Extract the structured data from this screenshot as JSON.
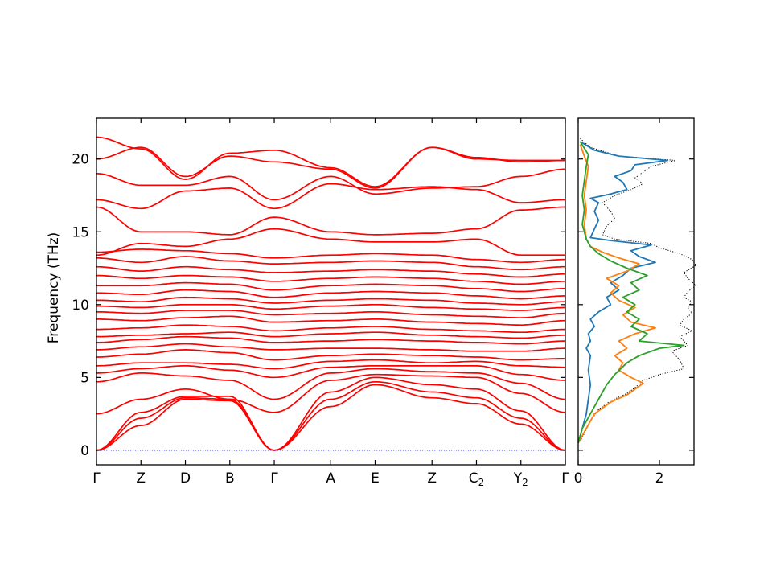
{
  "chart_data": [
    {
      "type": "line",
      "title": "",
      "xlabel": "",
      "ylabel": "Frequency (THz)",
      "ylim": [
        -1.0,
        22.8
      ],
      "yticks": [
        0,
        5,
        10,
        15,
        20
      ],
      "grid": false,
      "xticks": [
        {
          "label": "Γ",
          "sub": "",
          "x": 0.0
        },
        {
          "label": "Z",
          "sub": "",
          "x": 0.1
        },
        {
          "label": "D",
          "sub": "",
          "x": 0.2
        },
        {
          "label": "B",
          "sub": "",
          "x": 0.3
        },
        {
          "label": "Γ",
          "sub": "",
          "x": 0.4
        },
        {
          "label": "A",
          "sub": "",
          "x": 0.527
        },
        {
          "label": "E",
          "sub": "",
          "x": 0.627
        },
        {
          "label": "Z",
          "sub": "",
          "x": 0.755
        },
        {
          "label": "C",
          "sub": "2",
          "x": 0.855
        },
        {
          "label": "Y",
          "sub": "2",
          "x": 0.955
        },
        {
          "label": "Γ",
          "sub": "",
          "x": 1.055
        }
      ],
      "zero_line": {
        "y": 0,
        "color": "#0000ff",
        "style": "dotted"
      },
      "band_color": "#ff0000",
      "bands": [
        [
          0.0,
          1.7,
          3.5,
          3.4,
          0.0,
          3.0,
          4.5,
          3.6,
          3.2,
          1.8,
          0.0
        ],
        [
          0.0,
          2.2,
          3.6,
          3.5,
          0.0,
          3.5,
          4.7,
          4.0,
          3.6,
          2.2,
          0.0
        ],
        [
          0.0,
          2.6,
          3.7,
          3.7,
          0.0,
          4.0,
          5.0,
          4.5,
          4.2,
          2.7,
          0.0
        ],
        [
          2.5,
          3.5,
          4.2,
          3.5,
          2.6,
          4.8,
          5.2,
          5.1,
          5.0,
          3.9,
          2.6
        ],
        [
          4.7,
          5.3,
          5.1,
          4.8,
          3.5,
          5.3,
          5.6,
          5.4,
          5.3,
          4.6,
          3.5
        ],
        [
          5.3,
          5.6,
          5.8,
          5.5,
          5.0,
          5.7,
          5.8,
          5.8,
          5.8,
          5.2,
          4.8
        ],
        [
          5.8,
          6.0,
          6.0,
          5.9,
          5.6,
          6.1,
          6.2,
          6.0,
          6.1,
          5.8,
          5.7
        ],
        [
          6.4,
          6.6,
          6.9,
          6.7,
          6.2,
          6.5,
          6.6,
          6.5,
          6.4,
          6.2,
          6.3
        ],
        [
          6.9,
          7.1,
          7.3,
          7.1,
          6.9,
          7.0,
          7.0,
          6.9,
          6.8,
          6.8,
          7.0
        ],
        [
          7.4,
          7.6,
          7.8,
          7.7,
          7.4,
          7.5,
          7.6,
          7.5,
          7.4,
          7.3,
          7.5
        ],
        [
          7.8,
          7.9,
          8.0,
          8.1,
          7.8,
          8.0,
          8.1,
          7.9,
          7.8,
          7.7,
          7.9
        ],
        [
          8.3,
          8.4,
          8.6,
          8.5,
          8.2,
          8.4,
          8.5,
          8.3,
          8.2,
          8.1,
          8.3
        ],
        [
          9.0,
          8.9,
          9.1,
          9.2,
          8.8,
          8.9,
          9.0,
          8.8,
          8.7,
          8.6,
          8.9
        ],
        [
          9.5,
          9.4,
          9.6,
          9.6,
          9.3,
          9.4,
          9.5,
          9.3,
          9.2,
          9.1,
          9.4
        ],
        [
          9.9,
          9.8,
          10.0,
          10.0,
          9.7,
          9.9,
          10.0,
          9.8,
          9.7,
          9.6,
          9.8
        ],
        [
          10.3,
          10.2,
          10.5,
          10.4,
          10.1,
          10.3,
          10.4,
          10.3,
          10.1,
          10.0,
          10.2
        ],
        [
          10.8,
          10.7,
          11.0,
          10.9,
          10.5,
          10.8,
          10.9,
          10.8,
          10.6,
          10.4,
          10.6
        ],
        [
          11.3,
          11.3,
          11.5,
          11.4,
          11.0,
          11.3,
          11.4,
          11.3,
          11.1,
          10.9,
          11.1
        ],
        [
          12.0,
          11.8,
          12.0,
          11.9,
          11.6,
          11.8,
          11.9,
          11.8,
          11.6,
          11.4,
          11.6
        ],
        [
          12.6,
          12.3,
          12.6,
          12.4,
          12.2,
          12.3,
          12.4,
          12.3,
          12.1,
          11.9,
          12.1
        ],
        [
          13.2,
          12.9,
          13.3,
          13.0,
          12.8,
          12.9,
          13.0,
          12.9,
          12.6,
          12.4,
          12.6
        ],
        [
          13.6,
          13.8,
          13.7,
          13.5,
          13.2,
          13.4,
          13.5,
          13.4,
          13.1,
          12.9,
          13.1
        ],
        [
          13.4,
          14.2,
          14.0,
          14.5,
          15.2,
          14.5,
          14.3,
          14.3,
          14.5,
          13.4,
          13.4
        ],
        [
          16.7,
          15.0,
          15.0,
          14.8,
          16.0,
          15.0,
          14.8,
          14.9,
          15.2,
          16.5,
          16.7
        ],
        [
          17.2,
          16.6,
          17.8,
          18.0,
          16.6,
          18.3,
          17.9,
          18.1,
          17.9,
          17.0,
          17.2
        ],
        [
          19.0,
          18.2,
          18.2,
          18.8,
          17.2,
          18.8,
          17.6,
          18.0,
          18.1,
          18.8,
          19.3
        ],
        [
          20.0,
          20.8,
          18.8,
          20.2,
          19.8,
          19.3,
          18.0,
          20.8,
          20.1,
          19.8,
          19.9
        ],
        [
          21.5,
          20.7,
          18.6,
          20.4,
          20.6,
          19.4,
          18.1,
          20.8,
          20.0,
          19.9,
          19.9
        ]
      ]
    },
    {
      "type": "line",
      "title": "",
      "xlabel": "",
      "ylabel": "",
      "xlim": [
        0,
        2.85
      ],
      "xticks": [
        0,
        2
      ],
      "ylim": [
        -1.0,
        22.8
      ],
      "orientation": "horizontal-dos",
      "series": [
        {
          "color": "#000000",
          "style": "dotted",
          "points": [
            [
              0.05,
              0.6
            ],
            [
              0.3,
              2.0
            ],
            [
              0.5,
              2.8
            ],
            [
              0.8,
              3.4
            ],
            [
              1.2,
              3.9
            ],
            [
              1.4,
              4.3
            ],
            [
              1.6,
              4.8
            ],
            [
              2.0,
              5.2
            ],
            [
              2.6,
              5.6
            ],
            [
              2.5,
              6.2
            ],
            [
              2.3,
              6.8
            ],
            [
              2.7,
              7.2
            ],
            [
              2.5,
              7.8
            ],
            [
              2.8,
              8.2
            ],
            [
              2.5,
              8.6
            ],
            [
              2.6,
              9.0
            ],
            [
              2.8,
              9.4
            ],
            [
              2.7,
              9.8
            ],
            [
              2.8,
              10.2
            ],
            [
              2.6,
              10.5
            ],
            [
              2.7,
              10.9
            ],
            [
              2.9,
              11.3
            ],
            [
              2.7,
              11.8
            ],
            [
              2.6,
              12.2
            ],
            [
              2.9,
              12.7
            ],
            [
              2.8,
              13.1
            ],
            [
              2.5,
              13.5
            ],
            [
              2.0,
              13.9
            ],
            [
              1.8,
              14.2
            ],
            [
              0.9,
              14.5
            ],
            [
              0.6,
              14.8
            ],
            [
              0.7,
              15.4
            ],
            [
              0.9,
              15.9
            ],
            [
              0.8,
              16.4
            ],
            [
              0.6,
              17.0
            ],
            [
              0.9,
              17.5
            ],
            [
              1.3,
              17.9
            ],
            [
              1.6,
              18.3
            ],
            [
              1.4,
              18.7
            ],
            [
              1.6,
              19.1
            ],
            [
              1.8,
              19.5
            ],
            [
              2.4,
              19.9
            ],
            [
              1.0,
              20.2
            ],
            [
              0.3,
              20.8
            ],
            [
              0.05,
              21.4
            ]
          ]
        },
        {
          "color": "#1f77b4",
          "style": "solid",
          "points": [
            [
              0.0,
              0.5
            ],
            [
              0.1,
              1.5
            ],
            [
              0.2,
              2.5
            ],
            [
              0.25,
              3.5
            ],
            [
              0.3,
              4.5
            ],
            [
              0.25,
              5.5
            ],
            [
              0.3,
              6.5
            ],
            [
              0.2,
              7.0
            ],
            [
              0.3,
              7.5
            ],
            [
              0.25,
              8.0
            ],
            [
              0.4,
              8.5
            ],
            [
              0.3,
              9.0
            ],
            [
              0.5,
              9.5
            ],
            [
              0.8,
              10.0
            ],
            [
              0.7,
              10.5
            ],
            [
              1.0,
              11.0
            ],
            [
              0.8,
              11.5
            ],
            [
              1.1,
              12.0
            ],
            [
              1.3,
              12.5
            ],
            [
              1.9,
              12.9
            ],
            [
              1.5,
              13.3
            ],
            [
              1.3,
              13.7
            ],
            [
              1.8,
              14.1
            ],
            [
              0.8,
              14.4
            ],
            [
              0.3,
              14.6
            ],
            [
              0.4,
              15.2
            ],
            [
              0.5,
              15.8
            ],
            [
              0.4,
              16.4
            ],
            [
              0.5,
              17.0
            ],
            [
              0.3,
              17.3
            ],
            [
              0.8,
              17.6
            ],
            [
              1.2,
              17.9
            ],
            [
              1.1,
              18.4
            ],
            [
              0.9,
              18.8
            ],
            [
              1.3,
              19.2
            ],
            [
              1.4,
              19.6
            ],
            [
              2.2,
              19.9
            ],
            [
              1.0,
              20.2
            ],
            [
              0.4,
              20.6
            ],
            [
              0.05,
              21.2
            ]
          ]
        },
        {
          "color": "#ff7f0e",
          "style": "solid",
          "points": [
            [
              0.0,
              0.5
            ],
            [
              0.2,
              1.5
            ],
            [
              0.4,
              2.5
            ],
            [
              0.8,
              3.3
            ],
            [
              1.2,
              3.8
            ],
            [
              1.6,
              4.6
            ],
            [
              1.3,
              5.0
            ],
            [
              1.0,
              5.5
            ],
            [
              1.1,
              6.0
            ],
            [
              0.9,
              6.5
            ],
            [
              1.2,
              7.0
            ],
            [
              1.0,
              7.5
            ],
            [
              1.4,
              8.0
            ],
            [
              1.9,
              8.4
            ],
            [
              1.3,
              8.8
            ],
            [
              1.1,
              9.3
            ],
            [
              1.4,
              9.8
            ],
            [
              1.0,
              10.3
            ],
            [
              0.8,
              10.8
            ],
            [
              1.0,
              11.3
            ],
            [
              0.7,
              11.8
            ],
            [
              1.2,
              12.3
            ],
            [
              1.5,
              12.8
            ],
            [
              1.0,
              13.2
            ],
            [
              0.6,
              13.6
            ],
            [
              0.3,
              14.0
            ],
            [
              0.2,
              14.5
            ],
            [
              0.15,
              15.5
            ],
            [
              0.2,
              16.5
            ],
            [
              0.15,
              17.5
            ],
            [
              0.2,
              18.5
            ],
            [
              0.25,
              19.5
            ],
            [
              0.15,
              20.2
            ],
            [
              0.05,
              21.0
            ]
          ]
        },
        {
          "color": "#2ca02c",
          "style": "solid",
          "points": [
            [
              0.0,
              0.5
            ],
            [
              0.1,
              1.5
            ],
            [
              0.3,
              2.5
            ],
            [
              0.5,
              3.5
            ],
            [
              0.7,
              4.5
            ],
            [
              0.9,
              5.2
            ],
            [
              1.2,
              6.0
            ],
            [
              1.5,
              6.5
            ],
            [
              2.0,
              7.0
            ],
            [
              2.6,
              7.2
            ],
            [
              1.5,
              7.5
            ],
            [
              1.7,
              8.0
            ],
            [
              1.3,
              8.5
            ],
            [
              1.5,
              9.0
            ],
            [
              1.2,
              9.5
            ],
            [
              1.4,
              10.0
            ],
            [
              1.1,
              10.5
            ],
            [
              1.5,
              11.0
            ],
            [
              1.3,
              11.5
            ],
            [
              1.7,
              12.0
            ],
            [
              1.2,
              12.5
            ],
            [
              0.8,
              13.0
            ],
            [
              0.5,
              13.5
            ],
            [
              0.3,
              14.0
            ],
            [
              0.2,
              14.5
            ],
            [
              0.1,
              15.5
            ],
            [
              0.15,
              16.5
            ],
            [
              0.1,
              17.5
            ],
            [
              0.15,
              18.5
            ],
            [
              0.2,
              19.5
            ],
            [
              0.25,
              20.3
            ],
            [
              0.05,
              21.2
            ]
          ]
        }
      ]
    }
  ]
}
